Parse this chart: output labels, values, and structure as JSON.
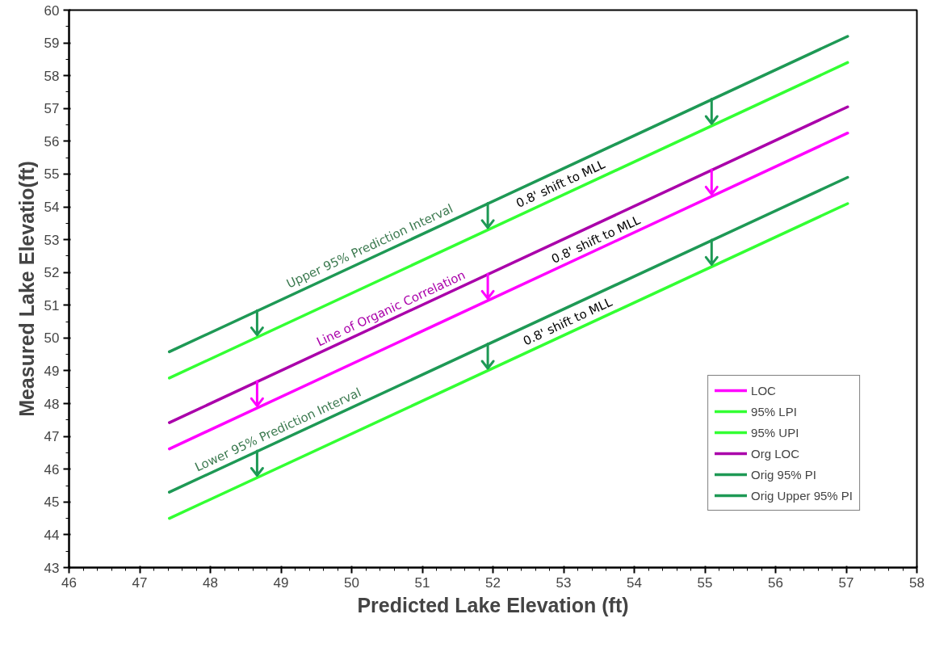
{
  "chart_data": {
    "type": "line",
    "xlabel": "Predicted Lake Elevation (ft)",
    "ylabel": "Measured Lake Elevatio(ft)",
    "x": [
      47.42,
      57.02
    ],
    "series": [
      {
        "name": "LOC",
        "color": "#ff00ff",
        "values": [
          46.62,
          56.25
        ]
      },
      {
        "name": "95% LPI",
        "color": "#33ff33",
        "values": [
          44.5,
          54.1
        ]
      },
      {
        "name": "95% UPI",
        "color": "#33ff33",
        "values": [
          48.78,
          58.4
        ]
      },
      {
        "name": "Org LOC",
        "color": "#aa00aa",
        "values": [
          47.42,
          57.05
        ]
      },
      {
        "name": "Orig 95% PI",
        "color": "#1e9955",
        "values": [
          45.3,
          54.9
        ]
      },
      {
        "name": "Orig Upper 95% PI",
        "color": "#1e9955",
        "values": [
          49.58,
          59.2
        ]
      }
    ],
    "annotations": [
      {
        "text": "Upper 95% Prediction Interval",
        "x": 50.3,
        "y": 52.5
      },
      {
        "text": "0.8' shift to MLL",
        "x": 53.0,
        "y": 54.4
      },
      {
        "text": "Line of Organic Correlation",
        "x": 50.6,
        "y": 50.6
      },
      {
        "text": "0.8' shift to MLL",
        "x": 53.5,
        "y": 52.7
      },
      {
        "text": "Lower 95% Prediction Interval",
        "x": 49.0,
        "y": 46.9
      },
      {
        "text": "0.8' shift to MLL",
        "x": 53.1,
        "y": 50.2
      }
    ],
    "xlim": [
      46,
      58
    ],
    "xticks": [
      46,
      47,
      48,
      49,
      50,
      51,
      52,
      53,
      54,
      55,
      56,
      57,
      58
    ],
    "ylim": [
      43,
      60
    ],
    "yticks": [
      43,
      44,
      45,
      46,
      47,
      48,
      49,
      50,
      51,
      52,
      53,
      54,
      55,
      56,
      57,
      58,
      59,
      60
    ],
    "grid": false,
    "legend": "bottom right",
    "marker": "none",
    "line_style": "solid"
  }
}
